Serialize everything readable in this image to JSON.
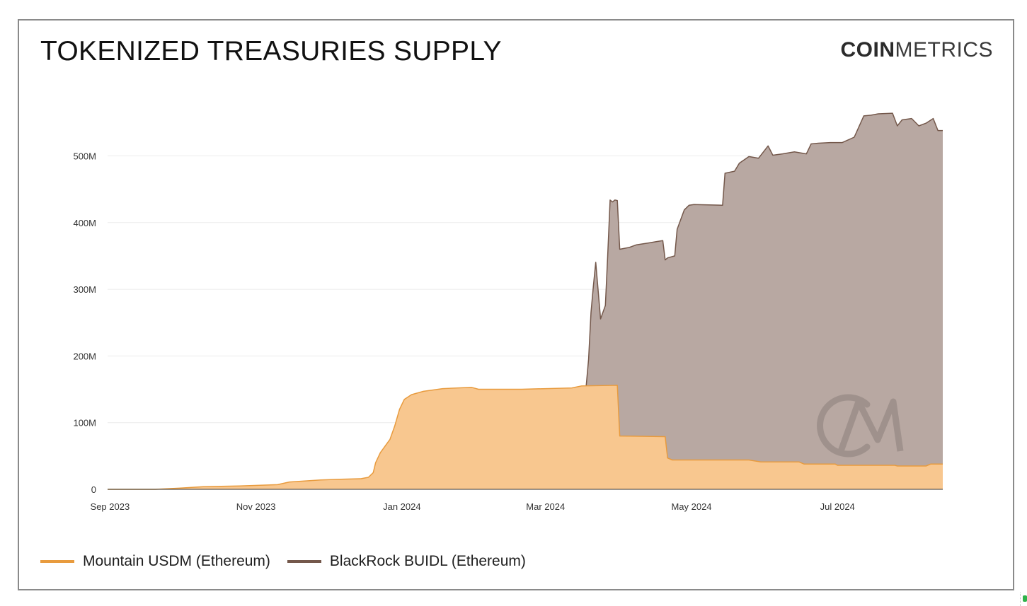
{
  "title": "TOKENIZED TREASURIES SUPPLY",
  "brand": {
    "bold": "COIN",
    "light": "METRICS",
    "watermark": "CM"
  },
  "colors": {
    "usdm_line": "#e89b3e",
    "usdm_fill": "#f8c78f",
    "buidl_line": "#74584b",
    "buidl_fill": "#b8a8a2",
    "grid": "#ececec",
    "axis": "#333333"
  },
  "chart_data": {
    "type": "area",
    "stacked": true,
    "x_axis_type": "date",
    "xlim": [
      "2023-08-31",
      "2024-08-14"
    ],
    "ylim": [
      0,
      580000000
    ],
    "yticks": [
      0,
      100000000,
      200000000,
      300000000,
      400000000,
      500000000
    ],
    "ytick_labels": [
      "0",
      "100M",
      "200M",
      "300M",
      "400M",
      "500M"
    ],
    "xticks": [
      "2023-09-01",
      "2023-11-01",
      "2024-01-01",
      "2024-03-01",
      "2024-05-01",
      "2024-07-01"
    ],
    "xtick_labels": [
      "Sep 2023",
      "Nov 2023",
      "Jan 2024",
      "Mar 2024",
      "May 2024",
      "Jul 2024"
    ],
    "grid": true,
    "legend": "bottom-left",
    "xlabel": "",
    "ylabel": "",
    "series": [
      {
        "name": "Mountain USDM (Ethereum)",
        "points": [
          [
            "2023-08-31",
            0
          ],
          [
            "2023-09-20",
            0
          ],
          [
            "2023-10-01",
            2000000
          ],
          [
            "2023-10-10",
            4000000
          ],
          [
            "2023-10-25",
            5000000
          ],
          [
            "2023-11-10",
            7000000
          ],
          [
            "2023-11-15",
            11000000
          ],
          [
            "2023-11-28",
            14000000
          ],
          [
            "2023-12-05",
            15000000
          ],
          [
            "2023-12-15",
            16000000
          ],
          [
            "2023-12-18",
            18000000
          ],
          [
            "2023-12-20",
            25000000
          ],
          [
            "2023-12-21",
            40000000
          ],
          [
            "2023-12-23",
            55000000
          ],
          [
            "2023-12-25",
            65000000
          ],
          [
            "2023-12-27",
            75000000
          ],
          [
            "2023-12-29",
            95000000
          ],
          [
            "2023-12-31",
            120000000
          ],
          [
            "2024-01-02",
            135000000
          ],
          [
            "2024-01-05",
            142000000
          ],
          [
            "2024-01-10",
            147000000
          ],
          [
            "2024-01-18",
            151000000
          ],
          [
            "2024-01-30",
            153000000
          ],
          [
            "2024-02-02",
            150000000
          ],
          [
            "2024-02-20",
            150000000
          ],
          [
            "2024-03-12",
            152000000
          ],
          [
            "2024-03-16",
            155000000
          ],
          [
            "2024-03-31",
            156000000
          ],
          [
            "2024-04-01",
            80000000
          ],
          [
            "2024-04-20",
            79000000
          ],
          [
            "2024-04-21",
            47000000
          ],
          [
            "2024-04-23",
            44000000
          ],
          [
            "2024-05-25",
            44000000
          ],
          [
            "2024-05-30",
            41000000
          ],
          [
            "2024-06-15",
            41000000
          ],
          [
            "2024-06-17",
            38000000
          ],
          [
            "2024-06-30",
            38000000
          ],
          [
            "2024-07-01",
            36000000
          ],
          [
            "2024-07-25",
            36000000
          ],
          [
            "2024-07-26",
            35000000
          ],
          [
            "2024-08-07",
            35000000
          ],
          [
            "2024-08-09",
            38000000
          ],
          [
            "2024-08-14",
            38000000
          ]
        ]
      },
      {
        "name": "BlackRock BUIDL (Ethereum)",
        "points": [
          [
            "2024-03-18",
            0
          ],
          [
            "2024-03-19",
            40000000
          ],
          [
            "2024-03-20",
            110000000
          ],
          [
            "2024-03-21",
            150000000
          ],
          [
            "2024-03-22",
            185000000
          ],
          [
            "2024-03-24",
            100000000
          ],
          [
            "2024-03-26",
            120000000
          ],
          [
            "2024-03-27",
            195000000
          ],
          [
            "2024-03-28",
            278000000
          ],
          [
            "2024-03-29",
            275000000
          ],
          [
            "2024-03-30",
            278000000
          ],
          [
            "2024-03-31",
            277000000
          ],
          [
            "2024-04-01",
            280000000
          ],
          [
            "2024-04-05",
            283000000
          ],
          [
            "2024-04-08",
            287000000
          ],
          [
            "2024-04-13",
            290000000
          ],
          [
            "2024-04-16",
            292000000
          ],
          [
            "2024-04-19",
            294000000
          ],
          [
            "2024-04-20",
            265000000
          ],
          [
            "2024-04-21",
            300000000
          ],
          [
            "2024-04-24",
            306000000
          ],
          [
            "2024-04-25",
            346000000
          ],
          [
            "2024-04-28",
            375000000
          ],
          [
            "2024-04-30",
            382000000
          ],
          [
            "2024-05-02",
            383000000
          ],
          [
            "2024-05-14",
            382000000
          ],
          [
            "2024-05-15",
            430000000
          ],
          [
            "2024-05-19",
            433000000
          ],
          [
            "2024-05-21",
            445000000
          ],
          [
            "2024-05-25",
            455000000
          ],
          [
            "2024-05-29",
            455000000
          ],
          [
            "2024-06-02",
            474000000
          ],
          [
            "2024-06-04",
            460000000
          ],
          [
            "2024-06-08",
            462000000
          ],
          [
            "2024-06-13",
            465000000
          ],
          [
            "2024-06-18",
            465000000
          ],
          [
            "2024-06-20",
            480000000
          ],
          [
            "2024-06-23",
            481000000
          ],
          [
            "2024-06-28",
            482000000
          ],
          [
            "2024-07-03",
            484000000
          ],
          [
            "2024-07-08",
            492000000
          ],
          [
            "2024-07-12",
            524000000
          ],
          [
            "2024-07-15",
            525000000
          ],
          [
            "2024-07-18",
            527000000
          ],
          [
            "2024-07-24",
            528000000
          ],
          [
            "2024-07-26",
            510000000
          ],
          [
            "2024-07-28",
            519000000
          ],
          [
            "2024-08-01",
            521000000
          ],
          [
            "2024-08-04",
            510000000
          ],
          [
            "2024-08-07",
            514000000
          ],
          [
            "2024-08-10",
            518000000
          ],
          [
            "2024-08-12",
            500000000
          ],
          [
            "2024-08-14",
            500000000
          ]
        ]
      }
    ]
  }
}
